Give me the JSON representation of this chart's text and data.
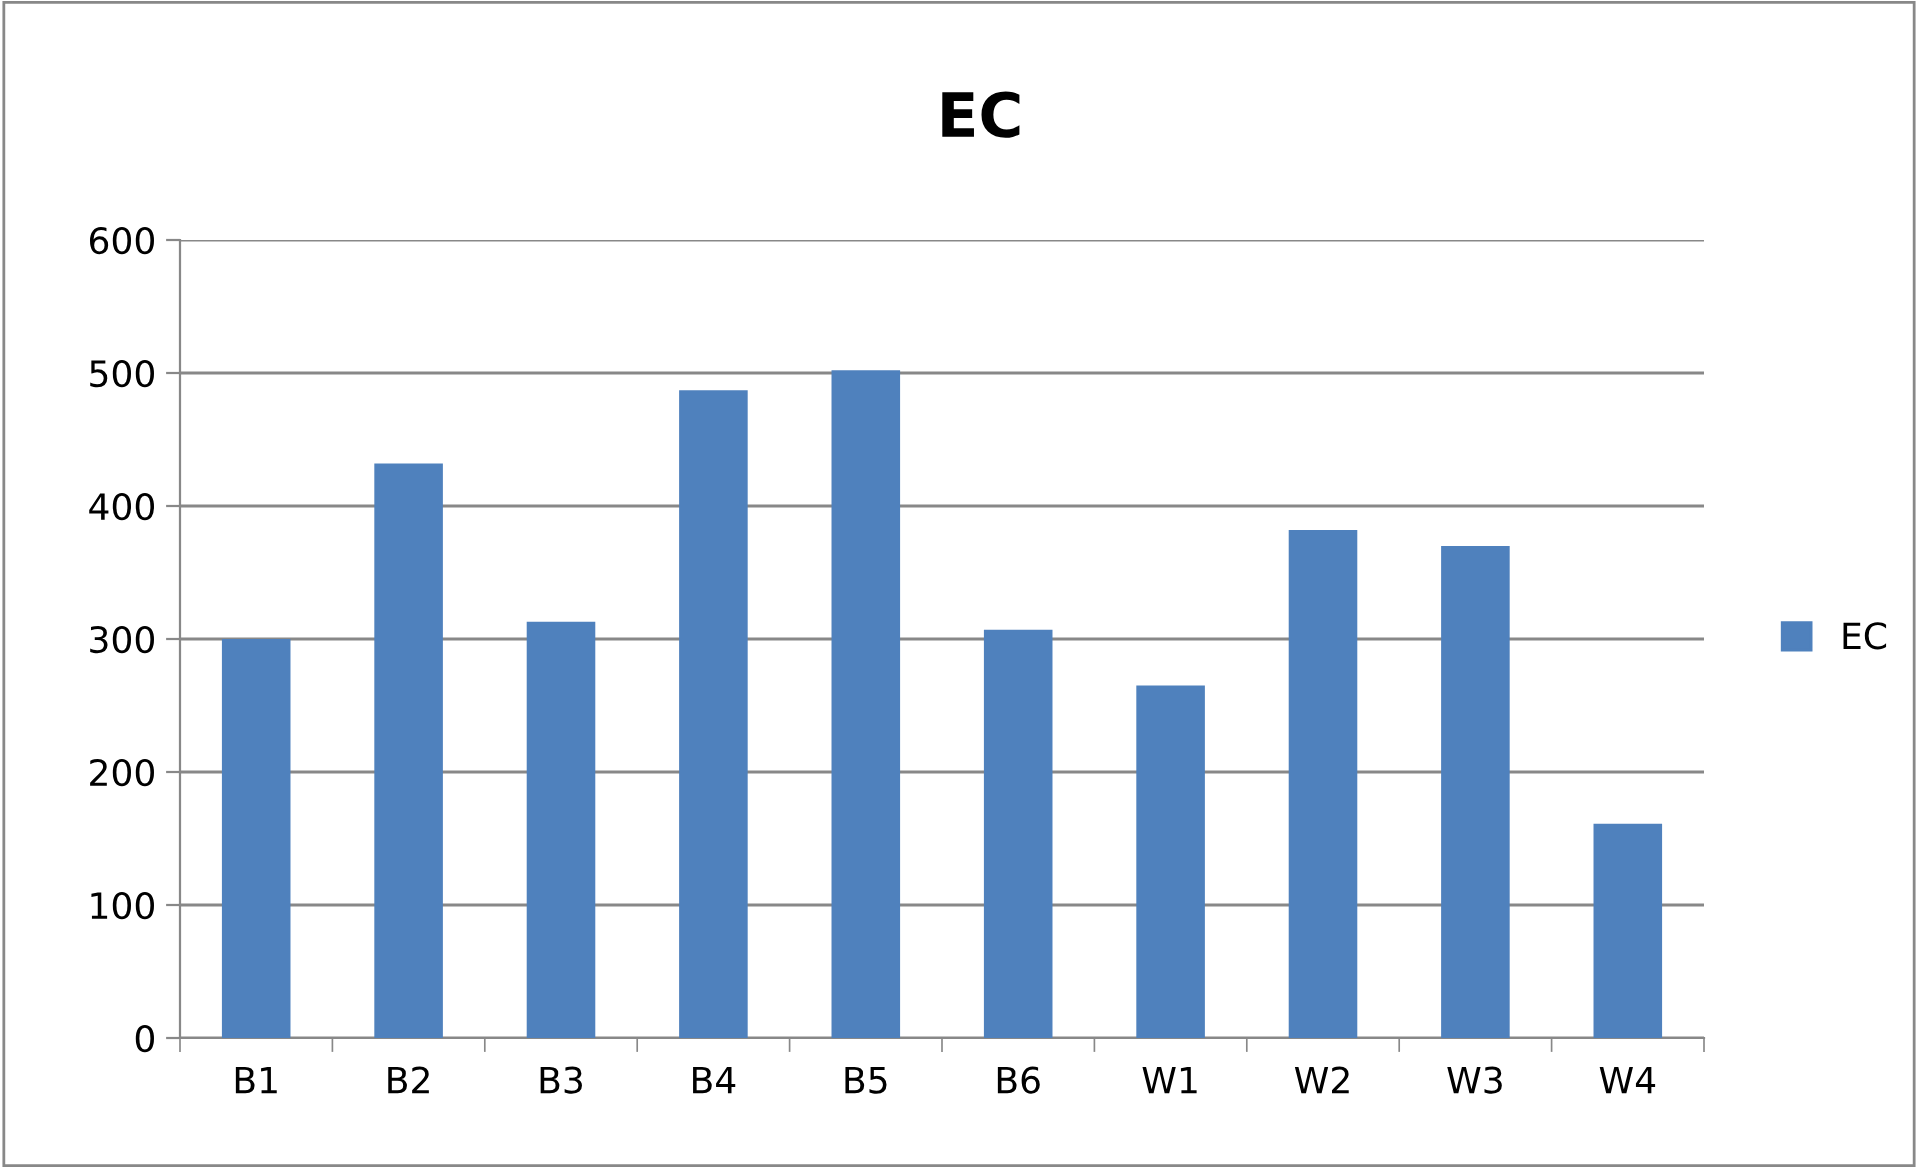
{
  "chart_data": {
    "type": "bar",
    "title": "EC",
    "categories": [
      "B1",
      "B2",
      "B3",
      "B4",
      "B5",
      "B6",
      "W1",
      "W2",
      "W3",
      "W4"
    ],
    "series": [
      {
        "name": "EC",
        "color": "#4f81bd",
        "values": [
          300,
          432,
          313,
          487,
          502,
          307,
          265,
          382,
          370,
          161
        ]
      }
    ],
    "ylim": [
      0,
      600
    ],
    "yticks": [
      0,
      100,
      200,
      300,
      400,
      500,
      600
    ],
    "grid": "y",
    "legend": "right"
  }
}
